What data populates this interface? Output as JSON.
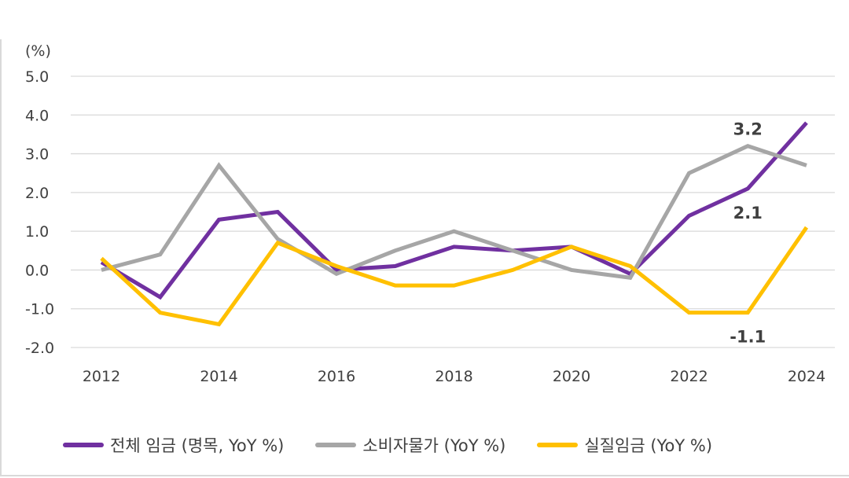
{
  "chart_data": {
    "type": "line",
    "unit_label": "(%)",
    "x": [
      2012,
      2013,
      2014,
      2015,
      2016,
      2017,
      2018,
      2019,
      2020,
      2021,
      2022,
      2023,
      2024
    ],
    "x_ticks": [
      "2012",
      "2014",
      "2016",
      "2018",
      "2020",
      "2022",
      "2024"
    ],
    "y_ticks": [
      "5.0",
      "4.0",
      "3.0",
      "2.0",
      "1.0",
      "0.0",
      "-1.0",
      "-2.0"
    ],
    "ylim": [
      -2,
      5
    ],
    "grid": true,
    "legend_position": "bottom",
    "series": [
      {
        "name": "전체 임금 (명목, YoY %)",
        "color": "#7030a0",
        "values": [
          0.2,
          -0.7,
          1.3,
          1.5,
          0.0,
          0.1,
          0.6,
          0.5,
          0.6,
          -0.1,
          1.4,
          2.1,
          3.8
        ]
      },
      {
        "name": "소비자물가 (YoY %)",
        "color": "#a6a6a6",
        "values": [
          0.0,
          0.4,
          2.7,
          0.8,
          -0.1,
          0.5,
          1.0,
          0.5,
          0.0,
          -0.2,
          2.5,
          3.2,
          2.7
        ]
      },
      {
        "name": "실질임금 (YoY %)",
        "color": "#ffc000",
        "values": [
          0.3,
          -1.1,
          -1.4,
          0.7,
          0.1,
          -0.4,
          -0.4,
          0.0,
          0.6,
          0.1,
          -1.1,
          -1.1,
          1.1
        ]
      }
    ],
    "annotations": [
      {
        "text": "3.2",
        "x": 2023,
        "y": 3.2,
        "series": 1,
        "pos": "above"
      },
      {
        "text": "2.1",
        "x": 2023,
        "y": 2.1,
        "series": 0,
        "pos": "below"
      },
      {
        "text": "-1.1",
        "x": 2023,
        "y": -1.1,
        "series": 2,
        "pos": "below"
      }
    ]
  }
}
